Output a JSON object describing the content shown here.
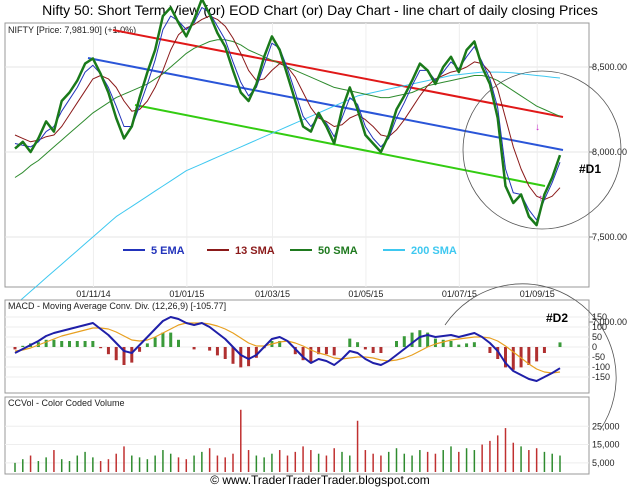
{
  "title": "Nifty 50: Short Term View (or) EOD Chart (or) Day Chart - line chart of daily closing Prices",
  "footer": "© www.TraderTraderTrader.blogspot.com",
  "price_panel": {
    "label": "NIFTY [Price: 7,981.90] (+1.0%)",
    "y_ticks": [
      "8,500.00",
      "8,000.00",
      "7,500.00",
      "7,000.00"
    ],
    "x_ticks": [
      "01/11/14",
      "01/01/15",
      "01/03/15",
      "01/05/15",
      "01/07/15",
      "01/09/15"
    ],
    "annotation": "#D1",
    "legend": [
      {
        "label": "5 EMA",
        "color": "#2233bb"
      },
      {
        "label": "13 SMA",
        "color": "#8b1a1a"
      },
      {
        "label": "50 SMA",
        "color": "#1f7a1f"
      },
      {
        "label": "200 SMA",
        "color": "#3ec8f0"
      }
    ]
  },
  "macd_panel": {
    "label": "MACD - Moving Average Conv. Div. (12,26,9) [-105.77]",
    "y_ticks": [
      "150",
      "100",
      "50",
      "0",
      "-50",
      "-100",
      "-150"
    ],
    "annotation": "#D2"
  },
  "volume_panel": {
    "label": "CCVol - Color Coded Volume",
    "y_ticks": [
      "25,000",
      "15,000",
      "5,000"
    ]
  },
  "colors": {
    "price": "#1a7a1a",
    "ema5": "#2233bb",
    "sma13": "#8b1a1a",
    "sma50": "#2e8b2e",
    "sma200": "#3ec8f0",
    "red_channel": "#e01818",
    "blue_channel": "#2a55d8",
    "green_channel": "#33cc11",
    "macd": "#1f1fa8",
    "signal": "#e8a020",
    "hist_pos": "#3a9a3a",
    "hist_neg": "#b03030",
    "vol_up": "#2e8b2e",
    "vol_down": "#c03030",
    "marker": "#cc22cc"
  },
  "chart_data": {
    "type": "line",
    "x_tick_labels": [
      "01/11/14",
      "01/01/15",
      "01/03/15",
      "01/05/15",
      "01/07/15",
      "01/09/15"
    ],
    "price_close": [
      8020,
      8060,
      8000,
      8080,
      8180,
      8120,
      8300,
      8350,
      8420,
      8520,
      8550,
      8460,
      8350,
      8200,
      8080,
      8150,
      8320,
      8470,
      8600,
      8800,
      8850,
      8760,
      8680,
      8780,
      8900,
      8810,
      8700,
      8620,
      8480,
      8350,
      8300,
      8400,
      8560,
      8680,
      8600,
      8450,
      8300,
      8150,
      8120,
      8230,
      8150,
      8050,
      8250,
      8380,
      8250,
      8100,
      8050,
      8000,
      8100,
      8250,
      8330,
      8420,
      8520,
      8480,
      8400,
      8500,
      8560,
      8470,
      8600,
      8650,
      8500,
      8400,
      8200,
      7800,
      7700,
      7750,
      7620,
      7570,
      7750,
      7850,
      7981.9
    ],
    "ema5": [
      8050,
      8040,
      8030,
      8060,
      8120,
      8150,
      8240,
      8310,
      8380,
      8470,
      8510,
      8460,
      8380,
      8270,
      8150,
      8150,
      8270,
      8400,
      8540,
      8720,
      8800,
      8770,
      8720,
      8760,
      8850,
      8820,
      8740,
      8660,
      8530,
      8410,
      8330,
      8380,
      8510,
      8640,
      8610,
      8490,
      8350,
      8210,
      8150,
      8210,
      8170,
      8090,
      8200,
      8320,
      8280,
      8150,
      8080,
      8030,
      8080,
      8200,
      8290,
      8390,
      8480,
      8480,
      8420,
      8470,
      8530,
      8490,
      8560,
      8620,
      8530,
      8430,
      8260,
      7900,
      7760,
      7750,
      7660,
      7600,
      7720,
      7820,
      7940
    ],
    "sma13": [
      8100,
      8080,
      8060,
      8070,
      8090,
      8100,
      8150,
      8220,
      8290,
      8360,
      8430,
      8450,
      8430,
      8380,
      8300,
      8240,
      8250,
      8300,
      8380,
      8480,
      8600,
      8690,
      8730,
      8750,
      8780,
      8800,
      8780,
      8740,
      8670,
      8580,
      8480,
      8420,
      8430,
      8480,
      8520,
      8500,
      8440,
      8350,
      8260,
      8200,
      8180,
      8150,
      8160,
      8200,
      8220,
      8190,
      8150,
      8100,
      8090,
      8130,
      8190,
      8260,
      8330,
      8390,
      8430,
      8450,
      8470,
      8480,
      8500,
      8530,
      8520,
      8470,
      8370,
      8200,
      8030,
      7900,
      7800,
      7740,
      7720,
      7740,
      7790
    ],
    "sma50": [
      7850,
      7880,
      7920,
      7950,
      7990,
      8030,
      8070,
      8110,
      8150,
      8190,
      8230,
      8260,
      8290,
      8320,
      8340,
      8360,
      8380,
      8400,
      8430,
      8460,
      8500,
      8540,
      8580,
      8610,
      8630,
      8650,
      8660,
      8660,
      8650,
      8630,
      8600,
      8580,
      8560,
      8540,
      8520,
      8500,
      8480,
      8460,
      8440,
      8420,
      8400,
      8380,
      8370,
      8360,
      8350,
      8340,
      8330,
      8320,
      8320,
      8330,
      8340,
      8350,
      8370,
      8390,
      8400,
      8410,
      8420,
      8430,
      8440,
      8450,
      8450,
      8440,
      8420,
      8390,
      8360,
      8330,
      8300,
      8270,
      8250,
      8230,
      8210
    ],
    "sma200": [
      7100,
      7140,
      7180,
      7220,
      7260,
      7300,
      7340,
      7380,
      7420,
      7460,
      7500,
      7540,
      7580,
      7620,
      7650,
      7680,
      7710,
      7740,
      7770,
      7800,
      7830,
      7860,
      7890,
      7910,
      7930,
      7950,
      7970,
      7990,
      8010,
      8030,
      8050,
      8070,
      8090,
      8110,
      8130,
      8150,
      8170,
      8190,
      8210,
      8230,
      8250,
      8270,
      8290,
      8310,
      8330,
      8340,
      8350,
      8360,
      8370,
      8380,
      8390,
      8400,
      8410,
      8420,
      8430,
      8440,
      8450,
      8455,
      8460,
      8465,
      8470,
      8470,
      8470,
      8468,
      8465,
      8460,
      8455,
      8450,
      8445,
      8440,
      8435
    ],
    "macd": [
      -30,
      -10,
      10,
      30,
      55,
      70,
      80,
      90,
      100,
      110,
      120,
      90,
      60,
      20,
      -20,
      -30,
      10,
      50,
      90,
      130,
      150,
      140,
      120,
      110,
      120,
      100,
      70,
      40,
      0,
      -40,
      -60,
      -40,
      0,
      40,
      50,
      30,
      -10,
      -50,
      -80,
      -60,
      -70,
      -90,
      -60,
      -20,
      -30,
      -60,
      -80,
      -90,
      -70,
      -40,
      -10,
      20,
      50,
      60,
      50,
      55,
      60,
      50,
      60,
      70,
      50,
      20,
      -20,
      -80,
      -120,
      -140,
      -160,
      -170,
      -150,
      -130,
      -105.77
    ],
    "signal": [
      -20,
      -15,
      -5,
      10,
      25,
      40,
      55,
      65,
      75,
      85,
      95,
      95,
      90,
      75,
      55,
      35,
      30,
      35,
      50,
      70,
      90,
      110,
      120,
      120,
      120,
      115,
      105,
      90,
      70,
      45,
      20,
      5,
      5,
      15,
      25,
      30,
      20,
      5,
      -15,
      -30,
      -40,
      -55,
      -60,
      -55,
      -50,
      -50,
      -55,
      -65,
      -70,
      -65,
      -55,
      -40,
      -20,
      0,
      15,
      25,
      35,
      40,
      45,
      50,
      50,
      45,
      30,
      5,
      -25,
      -55,
      -85,
      -110,
      -125,
      -130,
      -125
    ],
    "volume": [
      5000,
      7000,
      9000,
      6000,
      8000,
      12000,
      7000,
      6000,
      9000,
      11000,
      8000,
      6000,
      7000,
      10000,
      14000,
      9000,
      8000,
      7000,
      9000,
      12000,
      10000,
      8000,
      7000,
      9000,
      11000,
      13000,
      9000,
      8000,
      10000,
      34000,
      12000,
      9000,
      8000,
      10000,
      12000,
      9000,
      11000,
      14000,
      12000,
      10000,
      9000,
      13000,
      11000,
      9000,
      28000,
      12000,
      10000,
      9000,
      11000,
      13000,
      10000,
      9000,
      12000,
      11000,
      10000,
      12000,
      14000,
      11000,
      13000,
      12000,
      15000,
      17000,
      20000,
      24000,
      16000,
      14000,
      12000,
      13000,
      11000,
      10000,
      9000
    ]
  }
}
